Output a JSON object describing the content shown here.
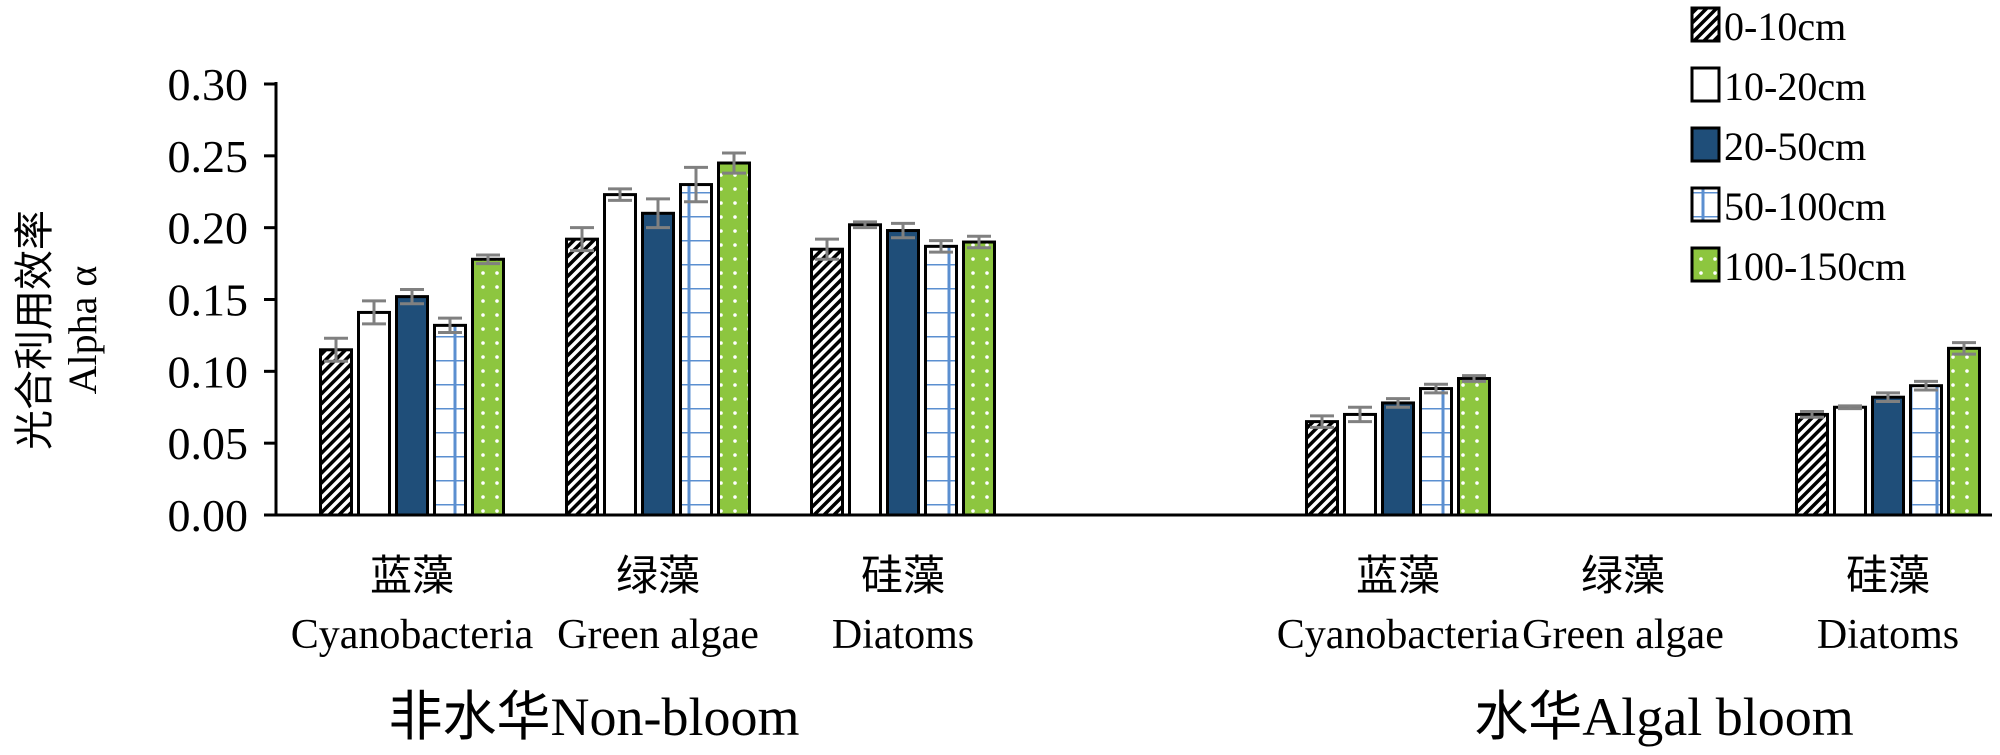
{
  "chart_data": {
    "type": "bar",
    "ylabel": [
      "光合利用效率",
      "Alpha α"
    ],
    "ylim": [
      0,
      0.3
    ],
    "yticks": [
      "0.00",
      "0.05",
      "0.10",
      "0.15",
      "0.20",
      "0.25",
      "0.30"
    ],
    "legend_position": "top-right",
    "series": [
      {
        "name": "0-10cm",
        "pattern": "diagonal-hatch",
        "color": "#000000"
      },
      {
        "name": "10-20cm",
        "pattern": "solid",
        "color": "#ffffff"
      },
      {
        "name": "20-50cm",
        "pattern": "solid",
        "color": "#1f4e79"
      },
      {
        "name": "50-100cm",
        "pattern": "grid",
        "color": "#5b8fd0"
      },
      {
        "name": "100-150cm",
        "pattern": "dots",
        "color": "#8dc63f"
      }
    ],
    "groups": [
      {
        "label": "非水华Non-bloom",
        "categories": [
          {
            "label_cn": "蓝藻",
            "label_en": "Cyanobacteria",
            "values": [
              0.115,
              0.141,
              0.152,
              0.132,
              0.178
            ],
            "errors": [
              0.008,
              0.008,
              0.005,
              0.005,
              0.003
            ]
          },
          {
            "label_cn": "绿藻",
            "label_en": "Green algae",
            "values": [
              0.192,
              0.223,
              0.21,
              0.23,
              0.245
            ],
            "errors": [
              0.008,
              0.004,
              0.01,
              0.012,
              0.007
            ]
          },
          {
            "label_cn": "硅藻",
            "label_en": "Diatoms",
            "values": [
              0.185,
              0.202,
              0.198,
              0.187,
              0.19
            ],
            "errors": [
              0.007,
              0.002,
              0.005,
              0.004,
              0.004
            ]
          }
        ]
      },
      {
        "label": "水华Algal bloom",
        "categories": [
          {
            "label_cn": "蓝藻",
            "label_en": "Cyanobacteria",
            "values": [
              0.065,
              0.07,
              0.078,
              0.088,
              0.095
            ],
            "errors": [
              0.004,
              0.005,
              0.003,
              0.003,
              0.002
            ]
          },
          {
            "label_cn": "绿藻",
            "label_en": "Green algae",
            "values": [],
            "errors": []
          },
          {
            "label_cn": "硅藻",
            "label_en": "Diatoms",
            "values": [
              0.07,
              0.075,
              0.082,
              0.09,
              0.116
            ],
            "errors": [
              0.002,
              0.001,
              0.003,
              0.003,
              0.004
            ]
          }
        ]
      }
    ]
  }
}
